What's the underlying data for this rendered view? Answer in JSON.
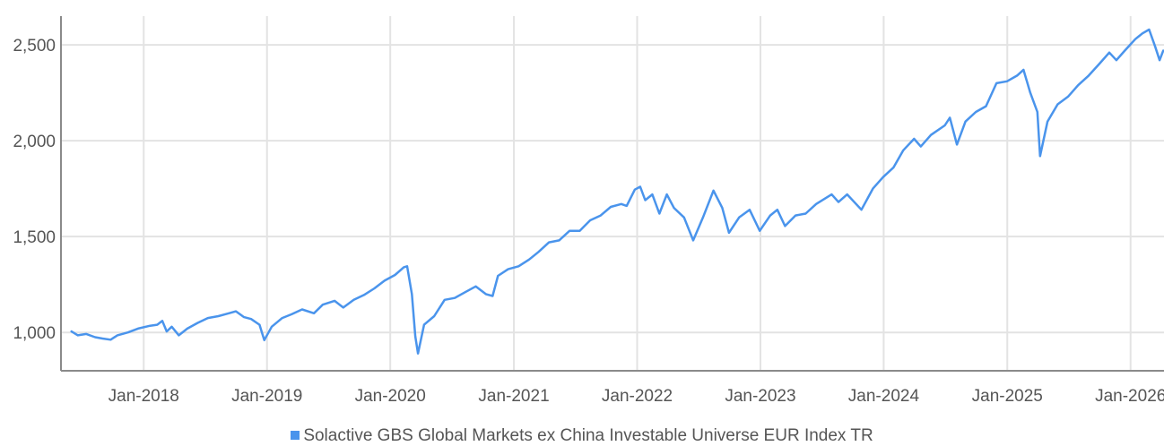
{
  "chart_data": {
    "type": "line",
    "x_axis": {
      "type": "date",
      "range": [
        "2017-05-01",
        "2026-04-10"
      ],
      "tick_labels": [
        "Jan-2018",
        "Jan-2019",
        "Jan-2020",
        "Jan-2021",
        "Jan-2022",
        "Jan-2023",
        "Jan-2024",
        "Jan-2025",
        "Jan-2026"
      ],
      "tick_dates": [
        "2018-01-01",
        "2019-01-01",
        "2020-01-01",
        "2021-01-01",
        "2022-01-01",
        "2023-01-01",
        "2024-01-01",
        "2025-01-01",
        "2026-01-01"
      ]
    },
    "y_axis": {
      "range": [
        800,
        2650
      ],
      "tick_values": [
        1000,
        1500,
        2000,
        2500
      ],
      "tick_labels": [
        "1,000",
        "1,500",
        "2,000",
        "2,500"
      ]
    },
    "grid": true,
    "legend_position": "bottom",
    "series": [
      {
        "name": "Solactive GBS Global Markets ex China Investable Universe EUR Index TR",
        "color": "#4a94ec",
        "points": [
          [
            "2017-06-01",
            1005
          ],
          [
            "2017-06-20",
            985
          ],
          [
            "2017-07-15",
            992
          ],
          [
            "2017-08-10",
            975
          ],
          [
            "2017-09-01",
            968
          ],
          [
            "2017-09-25",
            962
          ],
          [
            "2017-10-15",
            985
          ],
          [
            "2017-11-15",
            1000
          ],
          [
            "2017-12-15",
            1020
          ],
          [
            "2018-01-20",
            1035
          ],
          [
            "2018-02-10",
            1040
          ],
          [
            "2018-02-25",
            1060
          ],
          [
            "2018-03-10",
            1005
          ],
          [
            "2018-03-25",
            1030
          ],
          [
            "2018-04-15",
            985
          ],
          [
            "2018-05-10",
            1020
          ],
          [
            "2018-06-10",
            1050
          ],
          [
            "2018-07-10",
            1075
          ],
          [
            "2018-08-10",
            1085
          ],
          [
            "2018-09-10",
            1100
          ],
          [
            "2018-10-01",
            1110
          ],
          [
            "2018-10-25",
            1080
          ],
          [
            "2018-11-15",
            1070
          ],
          [
            "2018-12-10",
            1040
          ],
          [
            "2018-12-24",
            960
          ],
          [
            "2019-01-15",
            1030
          ],
          [
            "2019-02-15",
            1075
          ],
          [
            "2019-03-15",
            1095
          ],
          [
            "2019-04-15",
            1120
          ],
          [
            "2019-05-20",
            1100
          ],
          [
            "2019-06-15",
            1145
          ],
          [
            "2019-07-20",
            1165
          ],
          [
            "2019-08-15",
            1130
          ],
          [
            "2019-09-15",
            1170
          ],
          [
            "2019-10-15",
            1195
          ],
          [
            "2019-11-15",
            1230
          ],
          [
            "2019-12-15",
            1270
          ],
          [
            "2020-01-15",
            1300
          ],
          [
            "2020-02-10",
            1340
          ],
          [
            "2020-02-20",
            1345
          ],
          [
            "2020-03-05",
            1200
          ],
          [
            "2020-03-15",
            980
          ],
          [
            "2020-03-23",
            890
          ],
          [
            "2020-04-10",
            1040
          ],
          [
            "2020-05-10",
            1085
          ],
          [
            "2020-06-10",
            1170
          ],
          [
            "2020-07-10",
            1180
          ],
          [
            "2020-08-10",
            1210
          ],
          [
            "2020-09-10",
            1240
          ],
          [
            "2020-10-10",
            1200
          ],
          [
            "2020-10-30",
            1190
          ],
          [
            "2020-11-15",
            1295
          ],
          [
            "2020-12-15",
            1330
          ],
          [
            "2021-01-15",
            1345
          ],
          [
            "2021-02-15",
            1380
          ],
          [
            "2021-03-15",
            1420
          ],
          [
            "2021-04-15",
            1470
          ],
          [
            "2021-05-15",
            1480
          ],
          [
            "2021-06-15",
            1530
          ],
          [
            "2021-07-15",
            1530
          ],
          [
            "2021-08-15",
            1585
          ],
          [
            "2021-09-15",
            1610
          ],
          [
            "2021-10-15",
            1655
          ],
          [
            "2021-11-15",
            1670
          ],
          [
            "2021-12-01",
            1660
          ],
          [
            "2021-12-25",
            1745
          ],
          [
            "2022-01-10",
            1760
          ],
          [
            "2022-01-25",
            1690
          ],
          [
            "2022-02-15",
            1720
          ],
          [
            "2022-03-08",
            1620
          ],
          [
            "2022-03-30",
            1720
          ],
          [
            "2022-04-20",
            1650
          ],
          [
            "2022-05-20",
            1600
          ],
          [
            "2022-06-16",
            1480
          ],
          [
            "2022-07-15",
            1600
          ],
          [
            "2022-08-15",
            1740
          ],
          [
            "2022-09-10",
            1650
          ],
          [
            "2022-09-30",
            1520
          ],
          [
            "2022-10-30",
            1600
          ],
          [
            "2022-11-30",
            1640
          ],
          [
            "2022-12-30",
            1530
          ],
          [
            "2023-01-30",
            1610
          ],
          [
            "2023-02-20",
            1640
          ],
          [
            "2023-03-15",
            1555
          ],
          [
            "2023-04-15",
            1610
          ],
          [
            "2023-05-15",
            1620
          ],
          [
            "2023-06-15",
            1670
          ],
          [
            "2023-07-31",
            1720
          ],
          [
            "2023-08-20",
            1680
          ],
          [
            "2023-09-15",
            1720
          ],
          [
            "2023-10-27",
            1640
          ],
          [
            "2023-11-30",
            1750
          ],
          [
            "2023-12-30",
            1810
          ],
          [
            "2024-01-30",
            1860
          ],
          [
            "2024-02-28",
            1950
          ],
          [
            "2024-03-31",
            2010
          ],
          [
            "2024-04-20",
            1970
          ],
          [
            "2024-05-20",
            2030
          ],
          [
            "2024-06-30",
            2080
          ],
          [
            "2024-07-15",
            2120
          ],
          [
            "2024-08-05",
            1980
          ],
          [
            "2024-08-30",
            2100
          ],
          [
            "2024-09-30",
            2150
          ],
          [
            "2024-10-30",
            2180
          ],
          [
            "2024-11-30",
            2300
          ],
          [
            "2024-12-31",
            2310
          ],
          [
            "2025-01-30",
            2340
          ],
          [
            "2025-02-18",
            2370
          ],
          [
            "2025-03-10",
            2250
          ],
          [
            "2025-03-31",
            2150
          ],
          [
            "2025-04-08",
            1920
          ],
          [
            "2025-04-30",
            2100
          ],
          [
            "2025-05-30",
            2190
          ],
          [
            "2025-06-30",
            2230
          ],
          [
            "2025-07-30",
            2290
          ],
          [
            "2025-08-30",
            2340
          ],
          [
            "2025-09-30",
            2400
          ],
          [
            "2025-10-30",
            2460
          ],
          [
            "2025-11-20",
            2420
          ],
          [
            "2025-12-15",
            2470
          ],
          [
            "2026-01-15",
            2530
          ],
          [
            "2026-02-05",
            2560
          ],
          [
            "2026-02-25",
            2580
          ],
          [
            "2026-03-15",
            2490
          ],
          [
            "2026-03-28",
            2420
          ],
          [
            "2026-04-08",
            2470
          ]
        ]
      }
    ]
  }
}
